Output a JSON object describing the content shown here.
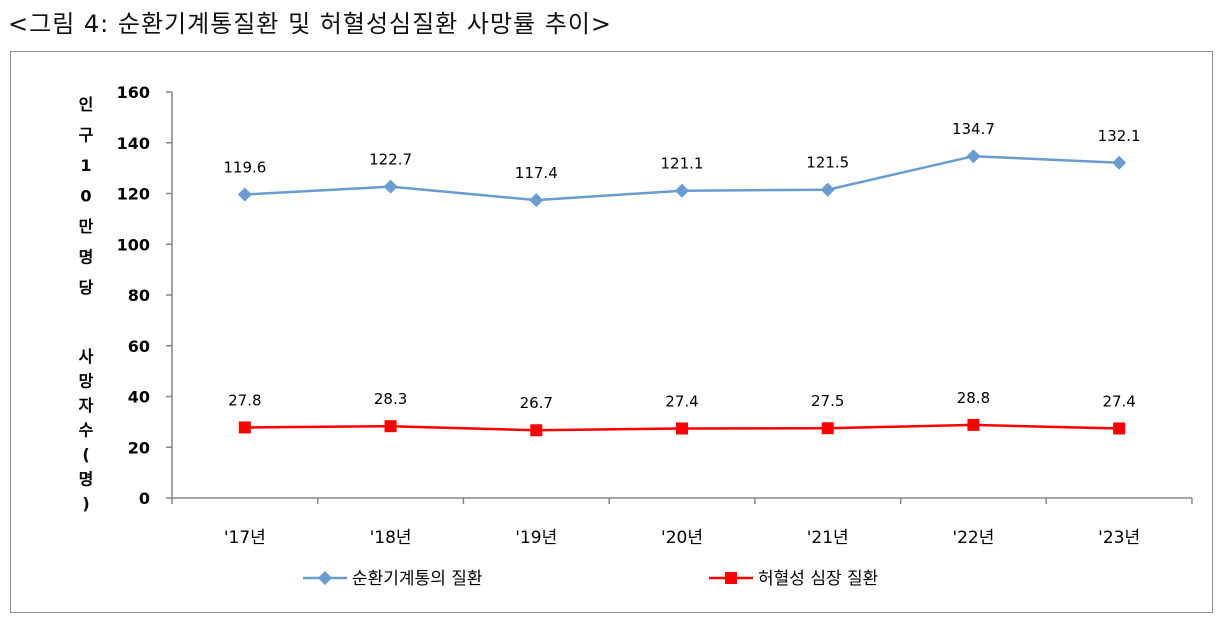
{
  "caption": "<그림 4: 순환기계통질환 및 허혈성심질환 사망률 추이>",
  "chart_data": {
    "type": "line",
    "categories": [
      "'17년",
      "'18년",
      "'19년",
      "'20년",
      "'21년",
      "'22년",
      "'23년"
    ],
    "series": [
      {
        "name": "순환기계통의 질환",
        "values": [
          119.6,
          122.7,
          117.4,
          121.1,
          121.5,
          134.7,
          132.1
        ],
        "labels": [
          "119.6",
          "122.7",
          "117.4",
          "121.1",
          "121.5",
          "134.7",
          "132.1"
        ],
        "color": "#6a9bd1",
        "marker": "diamond"
      },
      {
        "name": "허혈성 심장 질환",
        "values": [
          27.8,
          28.3,
          26.7,
          27.4,
          27.5,
          28.8,
          27.4
        ],
        "labels": [
          "27.8",
          "28.3",
          "26.7",
          "27.4",
          "27.5",
          "28.8",
          "27.4"
        ],
        "color": "#ff0000",
        "marker": "square"
      }
    ],
    "ylabel": "인구10만명당 사망자수(명)",
    "ylim": [
      0,
      160
    ],
    "yticks": [
      0,
      20,
      40,
      60,
      80,
      100,
      120,
      140,
      160
    ],
    "ytick_labels": [
      "0",
      "20",
      "40",
      "60",
      "80",
      "100",
      "120",
      "140",
      "160"
    ],
    "grid": false,
    "legend_position": "bottom"
  },
  "ylabel_upper_chars": [
    "인",
    "구",
    "1",
    "0",
    "만",
    "명",
    "당"
  ],
  "ylabel_lower_chars": [
    "사",
    "망",
    "자",
    "수",
    "(",
    "명",
    ")"
  ]
}
